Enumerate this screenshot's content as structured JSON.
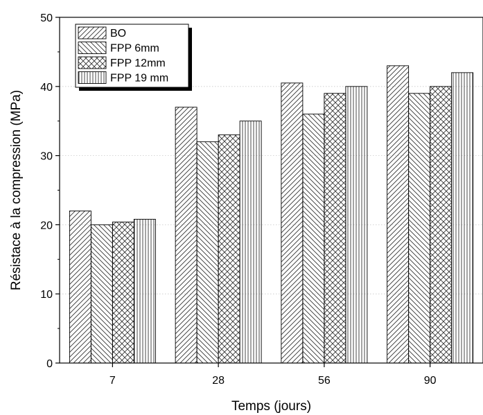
{
  "chart_data": {
    "type": "bar",
    "title": "",
    "xlabel": "Temps (jours)",
    "ylabel": "Résistace à la compression (MPa)",
    "categories": [
      "7",
      "28",
      "56",
      "90"
    ],
    "series": [
      {
        "name": "BO",
        "values": [
          22,
          37,
          40.5,
          43
        ],
        "pattern": "diag-right"
      },
      {
        "name": "FPP 6mm",
        "values": [
          20,
          32,
          36,
          39
        ],
        "pattern": "diag-left"
      },
      {
        "name": "FPP 12mm",
        "values": [
          20.4,
          33,
          39,
          40
        ],
        "pattern": "crosshatch"
      },
      {
        "name": "FPP 19 mm",
        "values": [
          20.8,
          35,
          40,
          42
        ],
        "pattern": "vertical"
      }
    ],
    "ylim": [
      0,
      50
    ],
    "yticks": [
      "0",
      "10",
      "20",
      "30",
      "40",
      "50"
    ],
    "grid": true,
    "legend_position": "top-left"
  }
}
